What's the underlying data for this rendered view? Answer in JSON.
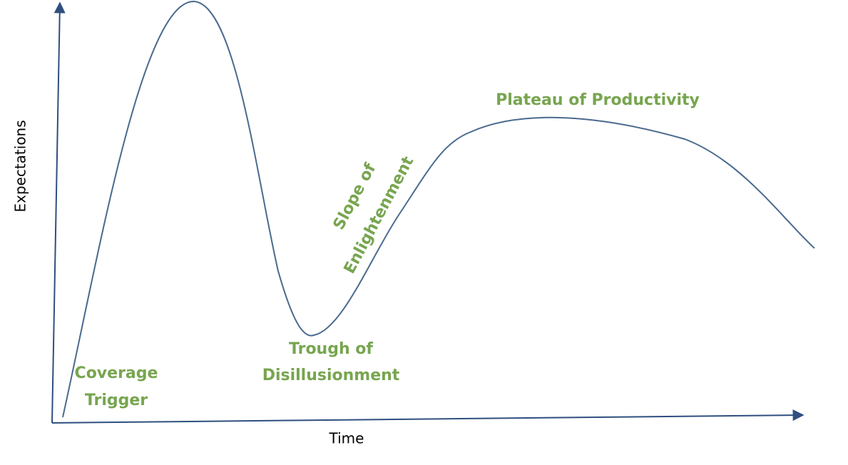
{
  "axes": {
    "y_label": "Expectations",
    "x_label": "Time"
  },
  "phases": [
    {
      "lines": [
        "Coverage",
        "Trigger"
      ]
    },
    {
      "lines": [
        "Trough of",
        "Disillusionment"
      ]
    },
    {
      "lines": [
        "Slope of",
        "Enlightenment"
      ]
    },
    {
      "lines": [
        "Plateau of Productivity"
      ]
    }
  ]
}
